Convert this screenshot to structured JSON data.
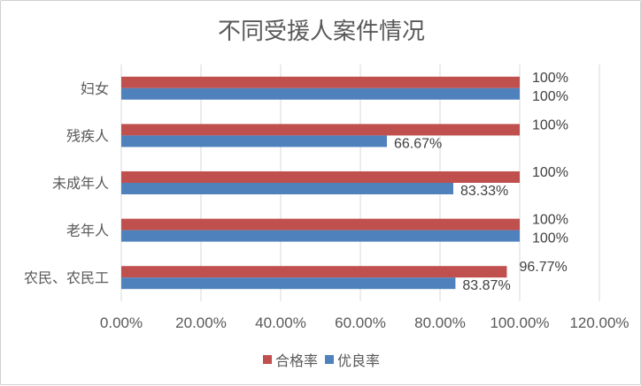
{
  "chart_data": {
    "type": "bar",
    "orientation": "horizontal",
    "title": "不同受援人案件情况",
    "categories": [
      "妇女",
      "残疾人",
      "未成年人",
      "老年人",
      "农民、农民工"
    ],
    "series": [
      {
        "name": "合格率",
        "color": "#C0504D",
        "values": [
          100,
          100,
          100,
          100,
          96.77
        ],
        "labels": [
          "100%",
          "100%",
          "100%",
          "100%",
          "96.77%"
        ]
      },
      {
        "name": "优良率",
        "color": "#4F81BD",
        "values": [
          100,
          66.67,
          83.33,
          100,
          83.87
        ],
        "labels": [
          "100%",
          "66.67%",
          "83.33%",
          "100%",
          "83.87%"
        ]
      }
    ],
    "xlim": [
      0,
      120
    ],
    "xticks": [
      "0.00%",
      "20.00%",
      "40.00%",
      "60.00%",
      "80.00%",
      "100.00%",
      "120.00%"
    ],
    "grid": "vertical",
    "legend": "bottom"
  }
}
